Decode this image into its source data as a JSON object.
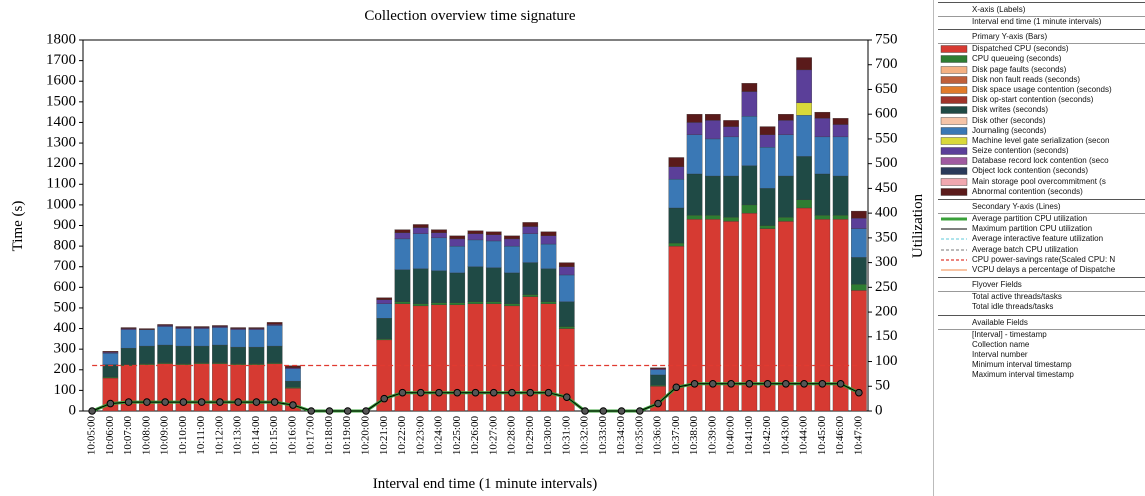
{
  "chart_data": {
    "type": "bar",
    "title": "Collection overview time signature",
    "x_label": "Interval end time (1 minute intervals)",
    "y_label": "Time (s)",
    "y2_label": "Utilization",
    "categories": [
      "10:05:00",
      "10:06:00",
      "10:07:00",
      "10:08:00",
      "10:09:00",
      "10:10:00",
      "10:11:00",
      "10:12:00",
      "10:13:00",
      "10:14:00",
      "10:15:00",
      "10:16:00",
      "10:17:00",
      "10:18:00",
      "10:19:00",
      "10:20:00",
      "10:21:00",
      "10:22:00",
      "10:23:00",
      "10:24:00",
      "10:25:00",
      "10:26:00",
      "10:27:00",
      "10:28:00",
      "10:29:00",
      "10:30:00",
      "10:31:00",
      "10:32:00",
      "10:33:00",
      "10:34:00",
      "10:35:00",
      "10:36:00",
      "10:37:00",
      "10:38:00",
      "10:39:00",
      "10:40:00",
      "10:41:00",
      "10:42:00",
      "10:43:00",
      "10:44:00",
      "10:45:00",
      "10:46:00",
      "10:47:00"
    ],
    "ylim": [
      0,
      1800
    ],
    "yticks": [
      0,
      100,
      200,
      300,
      400,
      500,
      600,
      700,
      800,
      900,
      1000,
      1100,
      1200,
      1300,
      1400,
      1500,
      1600,
      1700,
      1800
    ],
    "y2lim": [
      0,
      750
    ],
    "y2ticks": [
      0,
      50,
      100,
      150,
      200,
      250,
      300,
      350,
      400,
      450,
      500,
      550,
      600,
      650,
      700,
      750
    ],
    "series": [
      {
        "name": "Dispatched CPU (seconds)",
        "color": "#d63a32",
        "values": [
          0,
          160,
          220,
          225,
          230,
          225,
          230,
          230,
          225,
          225,
          230,
          110,
          0,
          0,
          0,
          0,
          345,
          520,
          510,
          515,
          515,
          520,
          520,
          510,
          555,
          520,
          400,
          0,
          0,
          0,
          0,
          120,
          800,
          930,
          930,
          920,
          960,
          885,
          920,
          985,
          930,
          930,
          585
        ]
      },
      {
        "name": "CPU queueing (seconds)",
        "color": "#2e7d32",
        "values": [
          0,
          5,
          5,
          5,
          5,
          5,
          5,
          5,
          5,
          5,
          5,
          5,
          0,
          0,
          0,
          0,
          5,
          10,
          10,
          10,
          10,
          10,
          10,
          10,
          10,
          10,
          10,
          0,
          0,
          0,
          0,
          5,
          15,
          20,
          20,
          20,
          40,
          15,
          20,
          40,
          20,
          20,
          30
        ]
      },
      {
        "name": "Disk page faults (seconds)",
        "color": "#f4b183",
        "values": [
          0,
          0,
          0,
          0,
          0,
          0,
          0,
          0,
          0,
          0,
          0,
          0,
          0,
          0,
          0,
          0,
          0,
          0,
          0,
          0,
          0,
          0,
          0,
          0,
          0,
          0,
          0,
          0,
          0,
          0,
          0,
          0,
          0,
          0,
          0,
          0,
          0,
          0,
          0,
          0,
          0,
          0,
          0
        ]
      },
      {
        "name": "Disk non fault reads (seconds)",
        "color": "#c0603a",
        "values": [
          0,
          0,
          0,
          0,
          0,
          0,
          0,
          0,
          0,
          0,
          0,
          0,
          0,
          0,
          0,
          0,
          0,
          0,
          0,
          0,
          0,
          0,
          0,
          0,
          0,
          0,
          0,
          0,
          0,
          0,
          0,
          0,
          0,
          0,
          0,
          0,
          0,
          0,
          0,
          0,
          0,
          0,
          0
        ]
      },
      {
        "name": "Disk space usage contention (seconds)",
        "color": "#e07b2a",
        "values": [
          0,
          0,
          0,
          0,
          0,
          0,
          0,
          0,
          0,
          0,
          0,
          0,
          0,
          0,
          0,
          0,
          0,
          0,
          0,
          0,
          0,
          0,
          0,
          0,
          0,
          0,
          0,
          0,
          0,
          0,
          0,
          0,
          0,
          0,
          0,
          0,
          0,
          0,
          0,
          0,
          0,
          0,
          0
        ]
      },
      {
        "name": "Disk op-start contention (seconds)",
        "color": "#a0342a",
        "values": [
          0,
          0,
          0,
          0,
          0,
          0,
          0,
          0,
          0,
          0,
          0,
          0,
          0,
          0,
          0,
          0,
          0,
          0,
          0,
          0,
          0,
          0,
          0,
          0,
          0,
          0,
          0,
          0,
          0,
          0,
          0,
          0,
          0,
          0,
          0,
          0,
          0,
          0,
          0,
          0,
          0,
          0,
          0
        ]
      },
      {
        "name": "Disk writes (seconds)",
        "color": "#1f4a45",
        "values": [
          0,
          60,
          80,
          85,
          85,
          85,
          80,
          85,
          80,
          80,
          80,
          30,
          0,
          0,
          0,
          0,
          100,
          155,
          170,
          155,
          145,
          170,
          165,
          150,
          155,
          160,
          120,
          0,
          0,
          0,
          0,
          50,
          170,
          200,
          190,
          200,
          190,
          180,
          200,
          210,
          200,
          190,
          130
        ]
      },
      {
        "name": "Disk other (seconds)",
        "color": "#f5c4a8",
        "values": [
          0,
          0,
          0,
          0,
          0,
          0,
          0,
          0,
          0,
          0,
          0,
          0,
          0,
          0,
          0,
          0,
          0,
          0,
          0,
          0,
          0,
          0,
          0,
          0,
          0,
          0,
          0,
          0,
          0,
          0,
          0,
          0,
          0,
          0,
          0,
          0,
          0,
          0,
          0,
          0,
          0,
          0,
          0
        ]
      },
      {
        "name": "Journaling (seconds)",
        "color": "#3a78b5",
        "values": [
          0,
          55,
          90,
          80,
          90,
          85,
          85,
          85,
          85,
          85,
          100,
          60,
          0,
          0,
          0,
          0,
          70,
          150,
          170,
          160,
          130,
          130,
          130,
          130,
          140,
          120,
          130,
          0,
          0,
          0,
          0,
          25,
          140,
          190,
          180,
          190,
          240,
          200,
          200,
          200,
          180,
          190,
          140
        ]
      },
      {
        "name": "Machine level gate serialization (secon",
        "color": "#d9d93a",
        "values": [
          0,
          0,
          0,
          0,
          0,
          0,
          0,
          0,
          0,
          0,
          0,
          0,
          0,
          0,
          0,
          0,
          0,
          0,
          0,
          0,
          0,
          0,
          0,
          0,
          0,
          0,
          0,
          0,
          0,
          0,
          0,
          0,
          0,
          0,
          0,
          0,
          0,
          0,
          0,
          60,
          0,
          0,
          0
        ]
      },
      {
        "name": "Seize contention (seconds)",
        "color": "#5b3f99",
        "values": [
          0,
          5,
          5,
          0,
          5,
          5,
          5,
          5,
          5,
          5,
          5,
          5,
          0,
          0,
          0,
          0,
          20,
          30,
          30,
          25,
          35,
          30,
          30,
          35,
          35,
          40,
          40,
          0,
          0,
          0,
          0,
          5,
          60,
          60,
          90,
          50,
          120,
          60,
          70,
          160,
          90,
          60,
          50
        ]
      },
      {
        "name": "Database record lock contention (seco",
        "color": "#a05aa0",
        "values": [
          0,
          0,
          0,
          0,
          0,
          0,
          0,
          0,
          0,
          0,
          0,
          0,
          0,
          0,
          0,
          0,
          0,
          0,
          0,
          0,
          0,
          0,
          0,
          0,
          0,
          0,
          0,
          0,
          0,
          0,
          0,
          0,
          0,
          0,
          0,
          0,
          0,
          0,
          0,
          0,
          0,
          0,
          0
        ]
      },
      {
        "name": "Object lock contention (seconds)",
        "color": "#2a3a5a",
        "values": [
          0,
          0,
          0,
          0,
          0,
          0,
          0,
          0,
          0,
          0,
          0,
          0,
          0,
          0,
          0,
          0,
          0,
          0,
          0,
          0,
          0,
          0,
          0,
          0,
          0,
          0,
          0,
          0,
          0,
          0,
          0,
          0,
          0,
          0,
          0,
          0,
          0,
          0,
          0,
          0,
          0,
          0,
          0
        ]
      },
      {
        "name": "Main storage pool overcommitment (s",
        "color": "#f0a8b0",
        "values": [
          0,
          0,
          0,
          0,
          0,
          0,
          0,
          0,
          0,
          0,
          0,
          0,
          0,
          0,
          0,
          0,
          0,
          0,
          0,
          0,
          0,
          0,
          0,
          0,
          0,
          0,
          0,
          0,
          0,
          0,
          0,
          0,
          0,
          0,
          0,
          0,
          0,
          0,
          0,
          0,
          0,
          0,
          0
        ]
      },
      {
        "name": "Abnormal contention (seconds)",
        "color": "#5a1a1a",
        "values": [
          0,
          5,
          5,
          5,
          5,
          5,
          5,
          5,
          5,
          5,
          10,
          10,
          0,
          0,
          0,
          0,
          10,
          15,
          15,
          15,
          15,
          15,
          15,
          15,
          20,
          20,
          20,
          0,
          0,
          0,
          0,
          5,
          45,
          40,
          30,
          30,
          40,
          40,
          30,
          60,
          30,
          30,
          35
        ]
      },
      {
        "name": "Average partition CPU utilization",
        "color": "#3aa03a",
        "axis": "y2",
        "type": "line",
        "width": 3,
        "values": [
          0,
          15,
          18,
          18,
          18,
          18,
          18,
          18,
          18,
          18,
          18,
          12,
          0,
          0,
          0,
          0,
          25,
          37,
          37,
          37,
          37,
          37,
          37,
          37,
          37,
          37,
          28,
          0,
          0,
          0,
          0,
          15,
          48,
          55,
          55,
          55,
          55,
          55,
          55,
          55,
          55,
          55,
          37
        ]
      },
      {
        "name": "Maximum partition CPU utilization",
        "color": "#000000",
        "axis": "y2",
        "type": "line",
        "width": 1,
        "markers": true,
        "values": [
          0,
          15,
          18,
          18,
          18,
          18,
          18,
          18,
          18,
          18,
          18,
          12,
          0,
          0,
          0,
          0,
          25,
          37,
          37,
          37,
          37,
          37,
          37,
          37,
          37,
          37,
          28,
          0,
          0,
          0,
          0,
          15,
          48,
          55,
          55,
          55,
          55,
          55,
          55,
          55,
          55,
          55,
          37
        ]
      },
      {
        "name": "Average interactive feature utilization",
        "color": "#5fc8d8",
        "axis": "y2",
        "type": "line",
        "width": 1,
        "style": "dashed",
        "values": [
          null,
          null,
          null,
          null,
          null,
          null,
          null,
          null,
          null,
          null,
          null,
          null,
          null,
          null,
          null,
          null,
          null,
          null,
          null,
          null,
          null,
          null,
          null,
          null,
          null,
          null,
          null,
          null,
          null,
          null,
          null,
          null,
          null,
          null,
          null,
          null,
          null,
          null,
          null,
          null,
          null,
          null,
          null
        ]
      },
      {
        "name": "Average batch CPU utilization",
        "color": "#777777",
        "axis": "y2",
        "type": "line",
        "width": 1,
        "style": "dashed",
        "values": [
          null,
          null,
          null,
          null,
          null,
          null,
          null,
          null,
          null,
          null,
          null,
          null,
          null,
          null,
          null,
          null,
          null,
          null,
          null,
          null,
          null,
          null,
          null,
          null,
          null,
          null,
          null,
          null,
          null,
          null,
          null,
          null,
          null,
          null,
          null,
          null,
          null,
          null,
          null,
          null,
          null,
          null,
          null
        ]
      },
      {
        "name": "CPU power-savings rate(Scaled CPU: N",
        "color": "#e03a30",
        "axis": "y2",
        "type": "line",
        "width": 1.2,
        "style": "dashed",
        "values": [
          92,
          92,
          92,
          92,
          92,
          92,
          92,
          92,
          92,
          92,
          92,
          92,
          92,
          92,
          92,
          92,
          92,
          92,
          92,
          92,
          92,
          92,
          92,
          92,
          92,
          92,
          92,
          92,
          92,
          92,
          92,
          92,
          92,
          92,
          92,
          92,
          92,
          92,
          92,
          92,
          92,
          92,
          92
        ]
      },
      {
        "name": "VCPU delays a percentage of Dispatche",
        "color": "#f08a4a",
        "axis": "y2",
        "type": "line",
        "width": 1,
        "values": [
          null,
          null,
          null,
          null,
          null,
          null,
          null,
          null,
          null,
          null,
          null,
          null,
          null,
          null,
          null,
          null,
          null,
          null,
          null,
          null,
          null,
          null,
          null,
          null,
          null,
          null,
          null,
          null,
          null,
          null,
          null,
          null,
          null,
          null,
          null,
          null,
          null,
          null,
          null,
          null,
          null,
          null,
          null
        ]
      }
    ]
  },
  "panel": {
    "sections": [
      {
        "title": "X-axis (Labels)",
        "items": [
          "Interval end time (1 minute intervals)"
        ]
      },
      {
        "title": "Primary Y-axis (Bars)"
      },
      {
        "title": "Secondary Y-axis (Lines)"
      },
      {
        "title": "Flyover Fields",
        "items": [
          "Total active threads/tasks",
          "Total idle threads/tasks"
        ]
      },
      {
        "title": "Available Fields",
        "items": [
          "[Interval] - timestamp",
          "Collection name",
          "Interval number",
          "Minimum interval timestamp",
          "Maximum interval timestamp"
        ]
      }
    ]
  }
}
